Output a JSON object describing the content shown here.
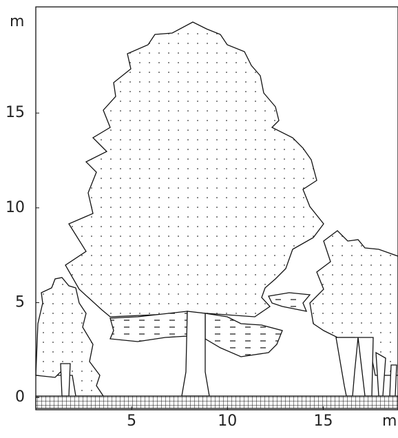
{
  "axes": {
    "x": {
      "unit": "m",
      "ticks": [
        5,
        10,
        15
      ],
      "lim": [
        0,
        18.9
      ]
    },
    "y": {
      "unit": "m",
      "ticks": [
        0,
        5,
        10,
        15
      ],
      "lim": [
        -0.65,
        20.6
      ]
    }
  }
}
